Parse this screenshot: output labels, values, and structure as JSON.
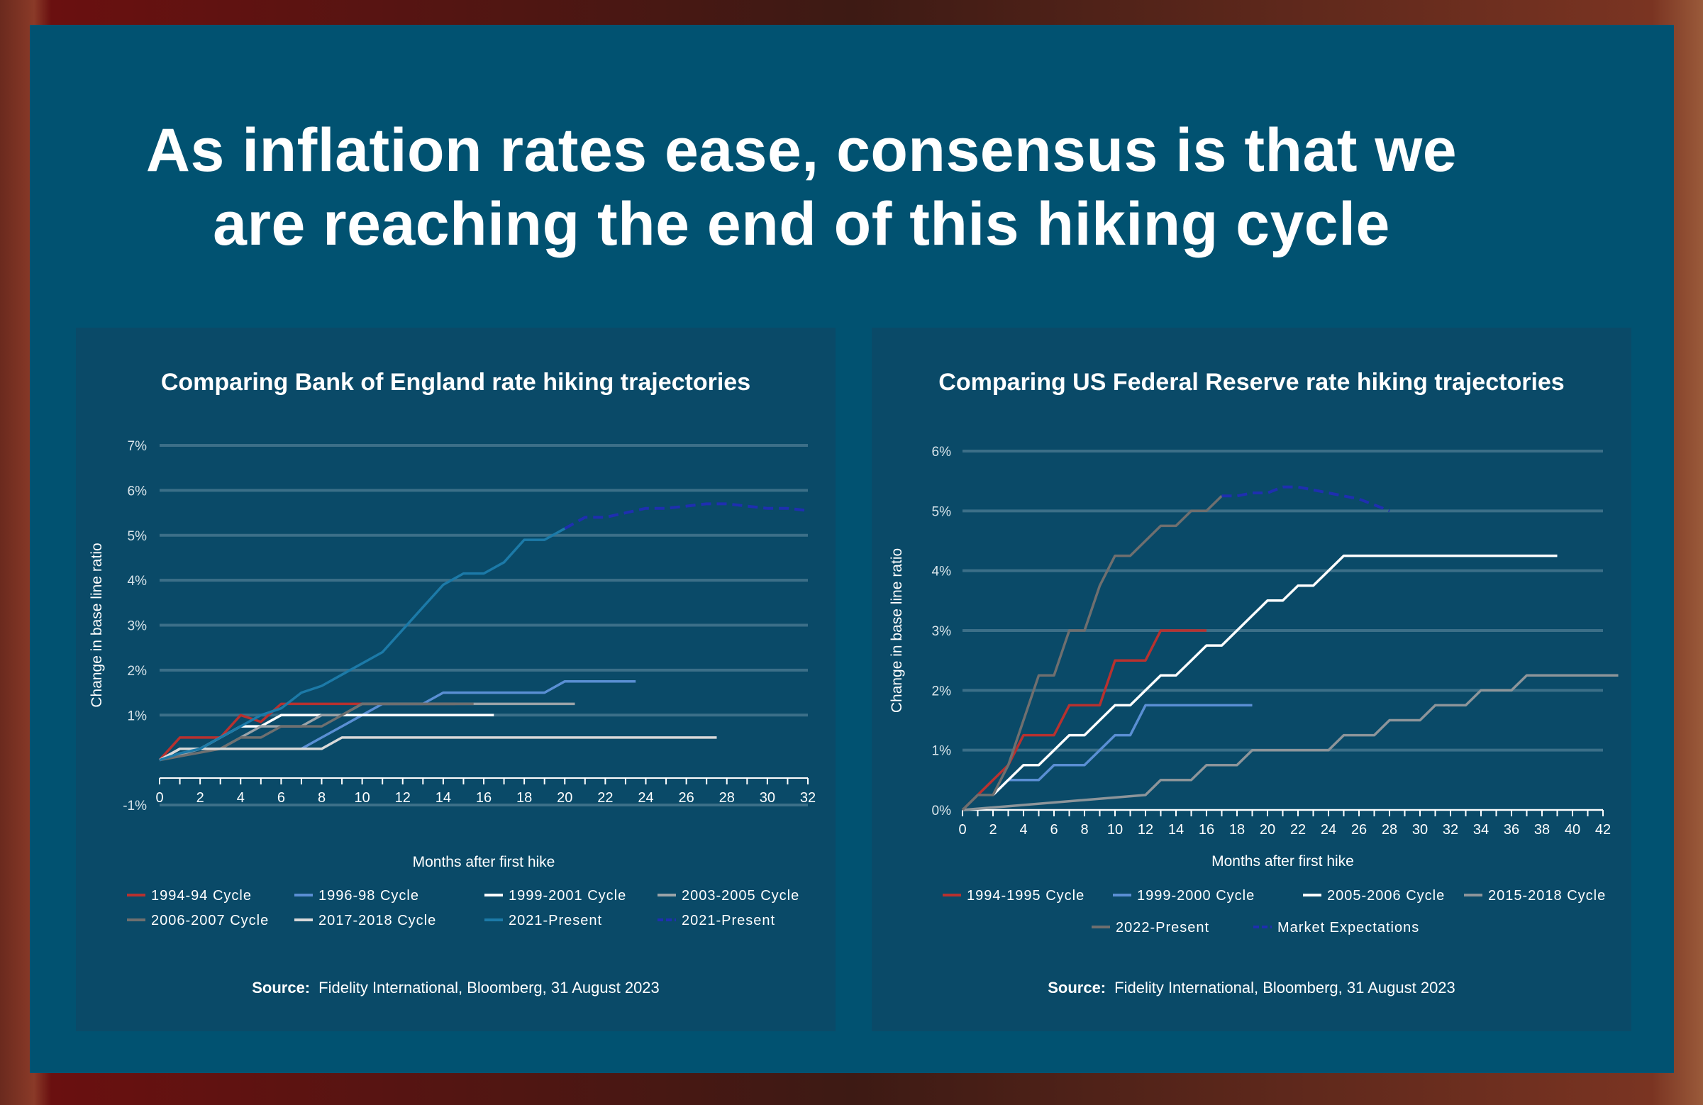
{
  "headline": {
    "line1": "As inflation rates ease, consensus is that we",
    "line2": "are reaching the end of this hiking cycle"
  },
  "colors": {
    "background": "#015271",
    "card": "#0a4a68",
    "gridline": "#45758e"
  },
  "chart_data": [
    {
      "type": "line",
      "title": "Comparing Bank of England rate hiking trajectories",
      "xlabel": "Months after first hike",
      "ylabel": "Change in base line ratio",
      "xlim": [
        0,
        32
      ],
      "ylim": [
        -1,
        7
      ],
      "xticks": [
        0,
        2,
        4,
        6,
        8,
        10,
        12,
        14,
        16,
        18,
        20,
        22,
        24,
        26,
        28,
        30,
        32
      ],
      "yticks": [
        -1,
        1,
        2,
        3,
        4,
        5,
        6,
        7
      ],
      "ytick_labels": [
        "-1%",
        "1%",
        "2%",
        "3%",
        "4%",
        "5%",
        "6%",
        "7%"
      ],
      "grid": true,
      "legend_position": "bottom",
      "source_label": "Source:",
      "source_text": "Fidelity International, Bloomberg, 31 August 2023",
      "series": [
        {
          "name": "1994-94 Cycle",
          "color": "#b8312f",
          "dash": false,
          "x": [
            0,
            1,
            2,
            3,
            4,
            5,
            6,
            7,
            8,
            9,
            10,
            11,
            12,
            13,
            14,
            14.6
          ],
          "y": [
            0,
            0.5,
            0.5,
            0.5,
            1.0,
            0.85,
            1.25,
            1.25,
            1.25,
            1.25,
            1.25,
            1.25,
            1.25,
            1.25,
            1.25,
            1.25
          ]
        },
        {
          "name": "1996-98 Cycle",
          "color": "#5a8fd4",
          "dash": false,
          "x": [
            0,
            2,
            3,
            6,
            7,
            8,
            9,
            10,
            11,
            12,
            13,
            14,
            19,
            20,
            23.5
          ],
          "y": [
            0,
            0.25,
            0.25,
            0.25,
            0.25,
            0.5,
            0.75,
            1.0,
            1.25,
            1.25,
            1.25,
            1.5,
            1.5,
            1.75,
            1.75
          ]
        },
        {
          "name": "1999-2001 Cycle",
          "color": "#ffffff",
          "dash": false,
          "x": [
            0,
            1,
            2,
            3,
            4,
            5,
            6,
            7,
            8,
            9,
            12,
            16.5
          ],
          "y": [
            0,
            0.25,
            0.25,
            0.5,
            0.75,
            0.75,
            1.0,
            1.0,
            1.0,
            1.0,
            1.0,
            1.0
          ]
        },
        {
          "name": "2003-2005 Cycle",
          "color": "#9ba3a8",
          "dash": false,
          "x": [
            0,
            2,
            3,
            4,
            5,
            6,
            7,
            8,
            9,
            10,
            12,
            20.5
          ],
          "y": [
            0,
            0.25,
            0.25,
            0.5,
            0.75,
            0.75,
            0.75,
            1.0,
            1.0,
            1.25,
            1.25,
            1.25
          ]
        },
        {
          "name": "2006-2007 Cycle",
          "color": "#6f6f6f",
          "dash": false,
          "x": [
            0,
            3,
            4,
            5,
            6,
            7,
            8,
            9,
            10,
            12,
            15.5
          ],
          "y": [
            0,
            0.25,
            0.5,
            0.5,
            0.75,
            0.75,
            0.75,
            1.0,
            1.25,
            1.25,
            1.25
          ]
        },
        {
          "name": "2017-2018 Cycle",
          "color": "#d9d9d9",
          "dash": false,
          "x": [
            0,
            1,
            8,
            9,
            10,
            27.5
          ],
          "y": [
            0,
            0.25,
            0.25,
            0.5,
            0.5,
            0.5
          ]
        },
        {
          "name": "2021-Present",
          "color": "#1c7aa8",
          "dash": false,
          "x": [
            0,
            1,
            2,
            3,
            4,
            5,
            6,
            7,
            8,
            9,
            10,
            11,
            12,
            13,
            14,
            15,
            16,
            17,
            18,
            19,
            20
          ],
          "y": [
            0,
            0.15,
            0.25,
            0.5,
            0.75,
            1.0,
            1.15,
            1.5,
            1.65,
            1.9,
            2.15,
            2.4,
            2.9,
            3.4,
            3.9,
            4.15,
            4.15,
            4.4,
            4.9,
            4.9,
            5.15
          ]
        },
        {
          "name": "2021-Present",
          "color": "#1f2fb0",
          "dash": true,
          "x": [
            20,
            21,
            22,
            23,
            24,
            25,
            26,
            27,
            28,
            29,
            30,
            31,
            32
          ],
          "y": [
            5.15,
            5.4,
            5.4,
            5.5,
            5.6,
            5.6,
            5.65,
            5.7,
            5.7,
            5.65,
            5.6,
            5.6,
            5.55
          ]
        }
      ]
    },
    {
      "type": "line",
      "title": "Comparing US Federal Reserve rate hiking trajectories",
      "xlabel": "Months after first hike",
      "ylabel": "Change in base line ratio",
      "xlim": [
        0,
        42
      ],
      "ylim": [
        0,
        6
      ],
      "xticks": [
        0,
        2,
        4,
        6,
        8,
        10,
        12,
        14,
        16,
        18,
        20,
        22,
        24,
        26,
        28,
        30,
        32,
        34,
        36,
        38,
        40,
        42
      ],
      "yticks": [
        0,
        1,
        2,
        3,
        4,
        5,
        6
      ],
      "ytick_labels": [
        "0%",
        "1%",
        "2%",
        "3%",
        "4%",
        "5%",
        "6%"
      ],
      "grid": true,
      "legend_position": "bottom",
      "source_label": "Source:",
      "source_text": "Fidelity International, Bloomberg, 31 August 2023",
      "series": [
        {
          "name": "1994-1995 Cycle",
          "color": "#b8312f",
          "dash": false,
          "x": [
            0,
            2,
            3,
            4,
            5,
            6,
            7,
            8,
            9,
            10,
            11,
            12,
            13,
            14,
            15,
            16
          ],
          "y": [
            0,
            0.5,
            0.75,
            1.25,
            1.25,
            1.25,
            1.75,
            1.75,
            1.75,
            2.5,
            2.5,
            2.5,
            3.0,
            3.0,
            3.0,
            3.0
          ]
        },
        {
          "name": "1999-2000 Cycle",
          "color": "#5a8fd4",
          "dash": false,
          "x": [
            2,
            3,
            4,
            5,
            6,
            7,
            8,
            9,
            10,
            11,
            12,
            13,
            14,
            19
          ],
          "y": [
            0.25,
            0.5,
            0.5,
            0.5,
            0.75,
            0.75,
            0.75,
            1.0,
            1.25,
            1.25,
            1.75,
            1.75,
            1.75,
            1.75
          ]
        },
        {
          "name": "2005-2006 Cycle",
          "color": "#ffffff",
          "dash": false,
          "x": [
            2,
            3,
            4,
            5,
            6,
            7,
            8,
            9,
            10,
            11,
            12,
            13,
            14,
            15,
            16,
            17,
            18,
            19,
            20,
            21,
            22,
            23,
            24,
            25,
            39
          ],
          "y": [
            0.25,
            0.5,
            0.75,
            0.75,
            1.0,
            1.25,
            1.25,
            1.5,
            1.75,
            1.75,
            2.0,
            2.25,
            2.25,
            2.5,
            2.75,
            2.75,
            3.0,
            3.25,
            3.5,
            3.5,
            3.75,
            3.75,
            4.0,
            4.25,
            4.25
          ]
        },
        {
          "name": "2015-2018 Cycle",
          "color": "#8d959a",
          "dash": false,
          "x": [
            0,
            12,
            13,
            14,
            15,
            16,
            17,
            18,
            19,
            20,
            24,
            25,
            26,
            27,
            28,
            29,
            30,
            31,
            32,
            33,
            34,
            35,
            36,
            37,
            43
          ],
          "y": [
            0,
            0.25,
            0.5,
            0.5,
            0.5,
            0.75,
            0.75,
            0.75,
            1.0,
            1.0,
            1.0,
            1.25,
            1.25,
            1.25,
            1.5,
            1.5,
            1.5,
            1.75,
            1.75,
            1.75,
            2.0,
            2.0,
            2.0,
            2.25,
            2.25
          ]
        },
        {
          "name": "2022-Present",
          "color": "#6f6f6f",
          "dash": false,
          "x": [
            0,
            1,
            2,
            3,
            4,
            5,
            6,
            7,
            8,
            9,
            10,
            11,
            12,
            13,
            14,
            15,
            16,
            17
          ],
          "y": [
            0,
            0.25,
            0.25,
            0.75,
            1.5,
            2.25,
            2.25,
            3.0,
            3.0,
            3.75,
            4.25,
            4.25,
            4.5,
            4.75,
            4.75,
            5.0,
            5.0,
            5.25
          ]
        },
        {
          "name": "Market Expectations",
          "color": "#1f2fb0",
          "dash": true,
          "x": [
            17,
            18,
            19,
            20,
            21,
            22,
            23,
            24,
            25,
            26,
            27,
            28
          ],
          "y": [
            5.25,
            5.25,
            5.3,
            5.3,
            5.4,
            5.4,
            5.35,
            5.3,
            5.25,
            5.2,
            5.1,
            5.0
          ]
        }
      ]
    }
  ]
}
